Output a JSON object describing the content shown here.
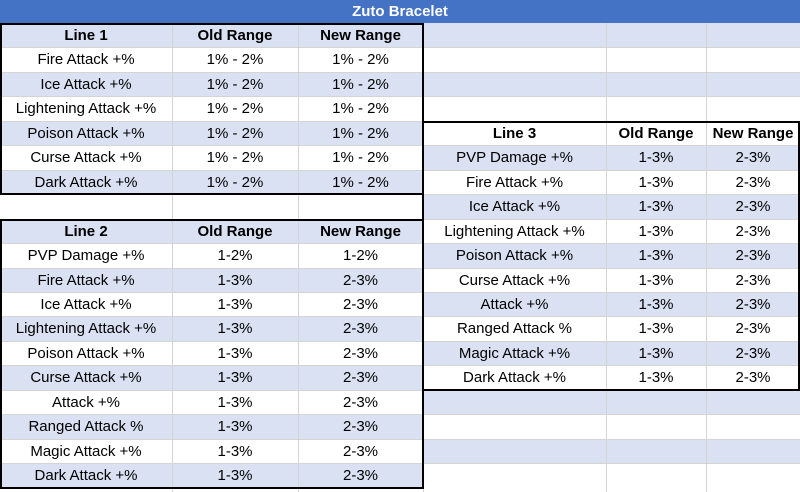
{
  "sheet": {
    "title": "Zuto Bracelet",
    "colors": {
      "title_bg": "#4472c4",
      "title_text": "#ffffff",
      "band": "#d9e1f2",
      "plain": "#ffffff",
      "grid": "#d4d4d4",
      "border": "#000000"
    }
  },
  "line1": {
    "header": [
      "Line 1",
      "Old Range",
      "New Range"
    ],
    "rows": [
      [
        "Fire Attack +%",
        "1% - 2%",
        "1% - 2%"
      ],
      [
        "Ice Attack +%",
        "1% - 2%",
        "1% - 2%"
      ],
      [
        "Lightening Attack +%",
        "1% - 2%",
        "1% - 2%"
      ],
      [
        "Poison Attack +%",
        "1% - 2%",
        "1% - 2%"
      ],
      [
        "Curse Attack +%",
        "1% - 2%",
        "1% - 2%"
      ],
      [
        "Dark Attack +%",
        "1% - 2%",
        "1% - 2%"
      ]
    ]
  },
  "line2": {
    "header": [
      "Line 2",
      "Old Range",
      "New Range"
    ],
    "rows": [
      [
        "PVP Damage  +%",
        "1-2%",
        "1-2%"
      ],
      [
        "Fire Attack +%",
        "1-3%",
        "2-3%"
      ],
      [
        "Ice Attack +%",
        "1-3%",
        "2-3%"
      ],
      [
        "Lightening Attack +%",
        "1-3%",
        "2-3%"
      ],
      [
        "Poison Attack +%",
        "1-3%",
        "2-3%"
      ],
      [
        "Curse Attack +%",
        "1-3%",
        "2-3%"
      ],
      [
        "Attack +%",
        "1-3%",
        "2-3%"
      ],
      [
        "Ranged Attack %",
        "1-3%",
        "2-3%"
      ],
      [
        "Magic Attack +%",
        "1-3%",
        "2-3%"
      ],
      [
        "Dark Attack +%",
        "1-3%",
        "2-3%"
      ]
    ]
  },
  "line3": {
    "header": [
      "Line 3",
      "Old Range",
      "New Range"
    ],
    "rows": [
      [
        "PVP Damage  +%",
        "1-3%",
        "2-3%"
      ],
      [
        "Fire Attack +%",
        "1-3%",
        "2-3%"
      ],
      [
        "Ice Attack +%",
        "1-3%",
        "2-3%"
      ],
      [
        "Lightening Attack +%",
        "1-3%",
        "2-3%"
      ],
      [
        "Poison Attack +%",
        "1-3%",
        "2-3%"
      ],
      [
        "Curse Attack +%",
        "1-3%",
        "2-3%"
      ],
      [
        "Attack +%",
        "1-3%",
        "2-3%"
      ],
      [
        "Ranged Attack %",
        "1-3%",
        "2-3%"
      ],
      [
        "Magic Attack +%",
        "1-3%",
        "2-3%"
      ],
      [
        "Dark Attack +%",
        "1-3%",
        "2-3%"
      ]
    ]
  }
}
